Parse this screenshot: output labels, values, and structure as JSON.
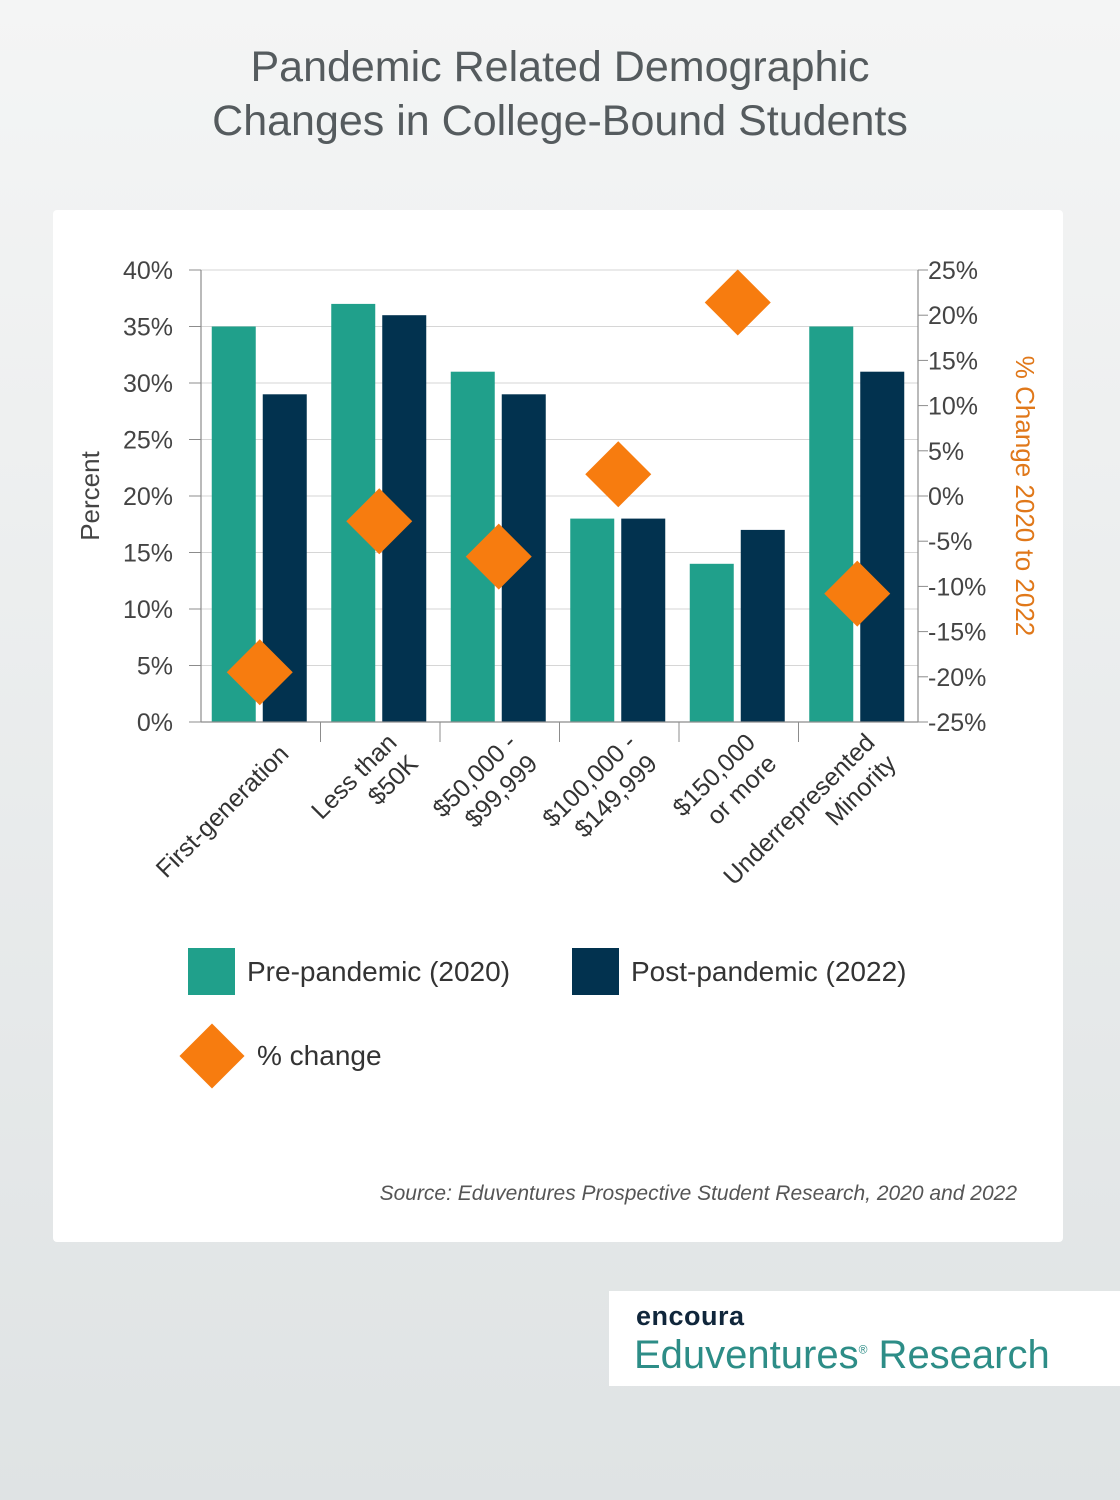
{
  "title_line1": "Pandemic Related Demographic",
  "title_line2": "Changes in College-Bound Students",
  "colors": {
    "pre": "#20a08b",
    "post": "#02324f",
    "change": "#f77c0f",
    "right_axis_label": "#e0781a"
  },
  "chart_data": {
    "type": "bar",
    "categories": [
      [
        "First-generation"
      ],
      [
        "Less than",
        "$50K"
      ],
      [
        "$50,000 -",
        "$99,999"
      ],
      [
        "$100,000 -",
        "$149,999"
      ],
      [
        "$150,000",
        "or more"
      ],
      [
        "Underrepresented",
        "Minority"
      ]
    ],
    "series": [
      {
        "name": "Pre-pandemic (2020)",
        "values": [
          35,
          37,
          31,
          18,
          14,
          35
        ],
        "axis": "left"
      },
      {
        "name": "Post-pandemic (2022)",
        "values": [
          29,
          36,
          29,
          18,
          17,
          31
        ],
        "axis": "left"
      },
      {
        "name": "% change",
        "values": [
          -19.5,
          -2.8,
          -6.7,
          2.4,
          21.4,
          -10.8
        ],
        "axis": "right",
        "marker": "diamond"
      }
    ],
    "ylabel": "Percent",
    "ylabel_right": "% Change 2020 to 2022",
    "ylim": [
      0,
      40
    ],
    "ylim_right": [
      -25,
      25
    ],
    "yticks": [
      "0%",
      "5%",
      "10%",
      "15%",
      "20%",
      "25%",
      "30%",
      "35%",
      "40%"
    ],
    "yticks_right": [
      "-25%",
      "-20%",
      "-15%",
      "-10%",
      "-5%",
      "0%",
      "5%",
      "10%",
      "15%",
      "20%",
      "25%"
    ],
    "grid": true,
    "legend_position": "bottom-left"
  },
  "source": "Source: Eduventures Prospective Student Research, 2020 and 2022",
  "logo": {
    "brand": "encoura",
    "name": "Eduventures",
    "name_suffix": " Research",
    "reg_mark": "®"
  }
}
